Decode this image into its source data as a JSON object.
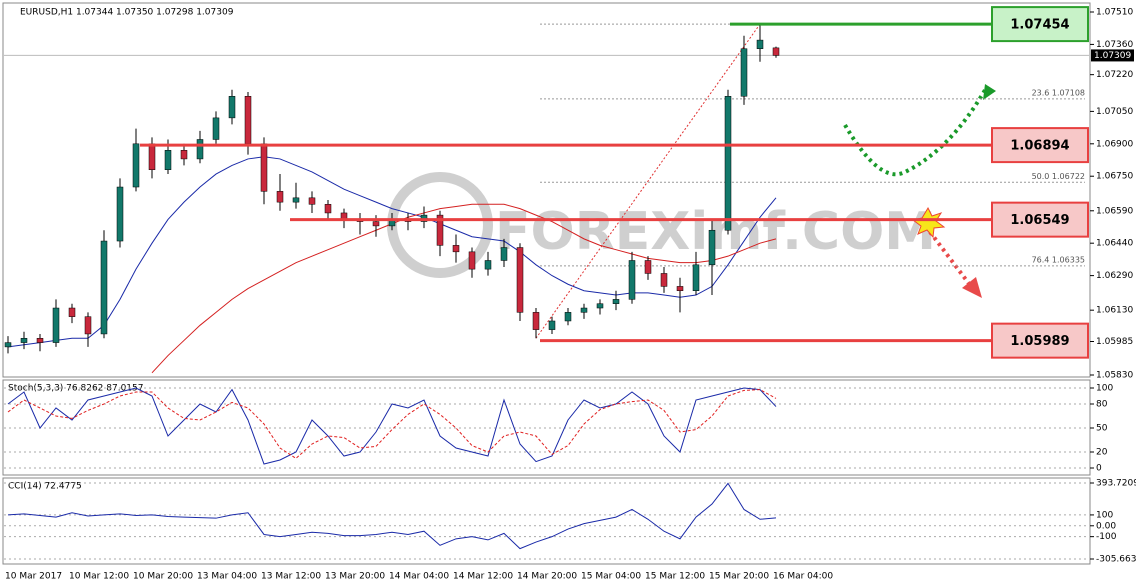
{
  "chart_data": {
    "type": "candlestick",
    "title": "EURUSD,H1  1.07344 1.07350 1.07298 1.07309",
    "watermark": "FOREXimf.COM",
    "categories": [
      "10 Mar 2017",
      null,
      null,
      null,
      "10 Mar 12:00",
      null,
      null,
      null,
      "10 Mar 20:00",
      null,
      null,
      null,
      "13 Mar 04:00",
      null,
      null,
      null,
      "13 Mar 12:00",
      null,
      null,
      null,
      "13 Mar 20:00",
      null,
      null,
      null,
      "14 Mar 04:00",
      null,
      null,
      null,
      "14 Mar 12:00",
      null,
      null,
      null,
      "14 Mar 20:00",
      null,
      null,
      null,
      "15 Mar 04:00",
      null,
      null,
      null,
      "15 Mar 12:00",
      null,
      null,
      null,
      "15 Mar 20:00",
      null,
      null,
      null,
      "16 Mar 04:00"
    ],
    "open": [
      1.0596,
      1.0598,
      1.06,
      1.0598,
      1.0614,
      1.061,
      1.0602,
      1.0645,
      1.067,
      1.069,
      1.0678,
      1.0687,
      1.0683,
      1.0692,
      1.0702,
      1.0712,
      1.069,
      1.0668,
      1.0663,
      1.0665,
      1.0662,
      1.0658,
      1.0655,
      1.0654,
      1.0652,
      1.0655,
      1.0654,
      1.0657,
      1.0643,
      1.064,
      1.0632,
      1.0636,
      1.0642,
      1.0612,
      1.0604,
      1.0608,
      1.0612,
      1.0614,
      1.0616,
      1.0618,
      1.0636,
      1.063,
      1.0624,
      1.0622,
      1.0634,
      1.065,
      1.0712,
      1.0734,
      1.07344
    ],
    "high": [
      1.0601,
      1.0603,
      1.0602,
      1.0618,
      1.0616,
      1.0612,
      1.065,
      1.0674,
      1.0697,
      1.0693,
      1.0692,
      1.069,
      1.0696,
      1.0705,
      1.0715,
      1.0714,
      1.0693,
      1.0676,
      1.0672,
      1.0668,
      1.0664,
      1.066,
      1.0658,
      1.0657,
      1.0658,
      1.0658,
      1.0661,
      1.0659,
      1.0648,
      1.0642,
      1.064,
      1.0646,
      1.0644,
      1.0614,
      1.061,
      1.0614,
      1.0616,
      1.0618,
      1.0622,
      1.064,
      1.0638,
      1.0633,
      1.0628,
      1.064,
      1.0655,
      1.0715,
      1.074,
      1.07454,
      1.0735
    ],
    "low": [
      1.0593,
      1.0595,
      1.0594,
      1.0596,
      1.0607,
      1.0596,
      1.06,
      1.0642,
      1.0668,
      1.0674,
      1.0676,
      1.068,
      1.0681,
      1.069,
      1.0699,
      1.0685,
      1.0662,
      1.0659,
      1.066,
      1.0658,
      1.0655,
      1.0651,
      1.0648,
      1.0647,
      1.065,
      1.065,
      1.0651,
      1.0638,
      1.0635,
      1.0628,
      1.0629,
      1.0633,
      1.0608,
      1.06,
      1.0602,
      1.0606,
      1.0609,
      1.0611,
      1.0613,
      1.0616,
      1.0627,
      1.0621,
      1.0612,
      1.062,
      1.062,
      1.0648,
      1.0708,
      1.0728,
      1.07298
    ],
    "close": [
      1.0598,
      1.06,
      1.0598,
      1.0614,
      1.061,
      1.0602,
      1.0645,
      1.067,
      1.069,
      1.0678,
      1.0687,
      1.0683,
      1.0692,
      1.0702,
      1.0712,
      1.069,
      1.0668,
      1.0663,
      1.0665,
      1.0662,
      1.0658,
      1.0655,
      1.0654,
      1.0652,
      1.0655,
      1.0654,
      1.0657,
      1.0643,
      1.064,
      1.0632,
      1.0636,
      1.0642,
      1.0612,
      1.0604,
      1.0608,
      1.0612,
      1.0614,
      1.0616,
      1.0618,
      1.0636,
      1.063,
      1.0624,
      1.0622,
      1.0634,
      1.065,
      1.0712,
      1.0734,
      1.0738,
      1.07309
    ],
    "up_color": "#12786a",
    "down_color": "#c8283c",
    "series": [
      {
        "color": "#1a2aa8",
        "values": [
          1.0596,
          1.0597,
          1.0598,
          1.0599,
          1.06,
          1.06,
          1.0606,
          1.0618,
          1.0632,
          1.0644,
          1.0655,
          1.0663,
          1.067,
          1.0676,
          1.068,
          1.0683,
          1.0684,
          1.0683,
          1.068,
          1.0677,
          1.0673,
          1.0669,
          1.0666,
          1.0663,
          1.066,
          1.0658,
          1.0656,
          1.0653,
          1.065,
          1.0647,
          1.0646,
          1.0645,
          1.064,
          1.0634,
          1.0629,
          1.0625,
          1.0622,
          1.0621,
          1.062,
          1.0621,
          1.0621,
          1.062,
          1.0619,
          1.062,
          1.0624,
          1.0634,
          1.0645,
          1.0656,
          1.0665
        ]
      },
      {
        "color": "#d42020",
        "values": [
          null,
          null,
          null,
          null,
          null,
          null,
          null,
          null,
          null,
          1.0584,
          1.0592,
          1.0599,
          1.0606,
          1.0612,
          1.0618,
          1.0623,
          1.0627,
          1.0631,
          1.0635,
          1.0638,
          1.0641,
          1.0644,
          1.0647,
          1.065,
          1.0653,
          1.0656,
          1.0658,
          1.066,
          1.0661,
          1.0662,
          1.0662,
          1.0662,
          1.066,
          1.0657,
          1.0654,
          1.065,
          1.0646,
          1.0643,
          1.0641,
          1.0639,
          1.0637,
          1.0636,
          1.0635,
          1.0635,
          1.0636,
          1.0638,
          1.0641,
          1.0644,
          1.0646
        ]
      }
    ],
    "ylim": [
      1.0583,
      1.0751
    ],
    "yticks": [
      {
        "value": 1.0751,
        "label": "1.07510"
      },
      {
        "value": 1.0736,
        "label": "1.07360"
      },
      {
        "value": 1.0722,
        "label": "1.07220"
      },
      {
        "value": 1.0705,
        "label": "1.07050"
      },
      {
        "value": 1.069,
        "label": "1.06900"
      },
      {
        "value": 1.0675,
        "label": "1.06750"
      },
      {
        "value": 1.0659,
        "label": "1.06590"
      },
      {
        "value": 1.0644,
        "label": "1.06440"
      },
      {
        "value": 1.0629,
        "label": "1.06290"
      },
      {
        "value": 1.0613,
        "label": "1.06130"
      },
      1.05985,
      {
        "value": 1.0583,
        "label": "1.05830"
      }
    ],
    "levels": [
      {
        "value": 1.07454,
        "color": "#2ca02c"
      },
      {
        "value": 1.06894,
        "color": "#e84040"
      },
      {
        "value": 1.06549,
        "color": "#e84040"
      },
      {
        "value": 1.05989,
        "color": "#e84040"
      }
    ],
    "fibo": [
      {
        "value": 1.07108,
        "label": "23.6 1.07108"
      },
      {
        "value": 1.06722,
        "label": "50.0 1.06722"
      },
      {
        "value": 1.06335,
        "label": "76.4 1.06335"
      }
    ],
    "price": 1.07309,
    "stoch": {
      "title": "Stoch(5,3,3) 76.8262 87.0157",
      "ylim": [
        0,
        100
      ],
      "yticks": [
        100,
        80,
        50,
        20,
        0
      ],
      "main": [
        80,
        95,
        50,
        75,
        60,
        85,
        90,
        95,
        100,
        90,
        40,
        60,
        80,
        70,
        98,
        60,
        5,
        10,
        20,
        60,
        40,
        15,
        20,
        45,
        80,
        75,
        85,
        40,
        25,
        20,
        15,
        85,
        30,
        8,
        15,
        60,
        85,
        75,
        80,
        95,
        80,
        40,
        20,
        85,
        90,
        95,
        100,
        98,
        76.8262
      ],
      "signal": [
        70,
        85,
        75,
        65,
        62,
        72,
        80,
        90,
        95,
        95,
        75,
        62,
        60,
        70,
        82,
        75,
        55,
        25,
        12,
        30,
        40,
        38,
        25,
        27,
        48,
        67,
        80,
        67,
        50,
        28,
        20,
        40,
        45,
        40,
        17,
        28,
        55,
        73,
        80,
        83,
        85,
        72,
        45,
        48,
        65,
        90,
        97,
        98,
        87.0157
      ]
    },
    "cci": {
      "title": "CCI(14) 72.4775",
      "ylim": [
        -305.6636,
        393.7209
      ],
      "yticks": [
        393.7209,
        100,
        {
          "value": 0,
          "label": "0.00"
        },
        -100,
        -305.6636
      ],
      "values": [
        100,
        110,
        95,
        80,
        120,
        90,
        100,
        110,
        95,
        100,
        85,
        80,
        75,
        70,
        100,
        120,
        -80,
        -100,
        -80,
        -60,
        -70,
        -90,
        -90,
        -80,
        -60,
        -80,
        -50,
        -180,
        -120,
        -100,
        -130,
        -70,
        -210,
        -150,
        -100,
        -30,
        20,
        50,
        80,
        150,
        60,
        -50,
        -120,
        80,
        200,
        390,
        150,
        60,
        72.4775
      ]
    }
  }
}
